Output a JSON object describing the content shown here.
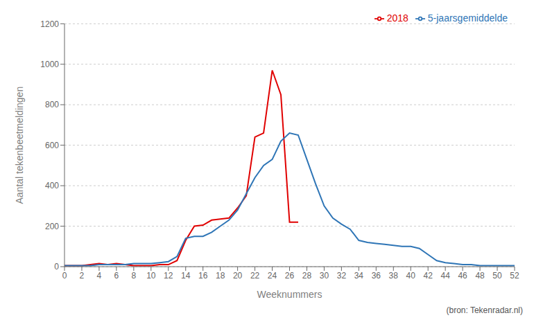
{
  "chart_data": {
    "type": "line",
    "x": [
      0,
      1,
      2,
      3,
      4,
      5,
      6,
      7,
      8,
      9,
      10,
      11,
      12,
      13,
      14,
      15,
      16,
      17,
      18,
      19,
      20,
      21,
      22,
      23,
      24,
      25,
      26,
      27,
      28,
      29,
      30,
      31,
      32,
      33,
      34,
      35,
      36,
      37,
      38,
      39,
      40,
      41,
      42,
      43,
      44,
      45,
      46,
      47,
      48,
      49,
      50,
      51,
      52
    ],
    "series": [
      {
        "name": "2018",
        "color": "#e00000",
        "values": [
          5,
          5,
          5,
          10,
          15,
          10,
          15,
          10,
          5,
          5,
          5,
          10,
          10,
          30,
          130,
          200,
          205,
          230,
          235,
          240,
          290,
          350,
          640,
          660,
          970,
          850,
          220,
          220,
          null,
          null,
          null,
          null,
          null,
          null,
          null,
          null,
          null,
          null,
          null,
          null,
          null,
          null,
          null,
          null,
          null,
          null,
          null,
          null,
          null,
          null,
          null,
          null,
          null
        ]
      },
      {
        "name": "5-jaarsgemiddelde",
        "color": "#2E75B6",
        "values": [
          5,
          5,
          5,
          5,
          10,
          10,
          10,
          10,
          15,
          15,
          15,
          20,
          25,
          50,
          140,
          150,
          150,
          170,
          200,
          230,
          280,
          360,
          440,
          500,
          530,
          620,
          660,
          650,
          530,
          410,
          300,
          240,
          210,
          185,
          130,
          120,
          115,
          110,
          105,
          100,
          100,
          90,
          60,
          30,
          20,
          15,
          10,
          10,
          5,
          5,
          5,
          5,
          5
        ]
      }
    ],
    "xlabel": "Weeknummers",
    "ylabel": "Aantal tekenbeetmeldingen",
    "annotations": [
      "(bron: Tekenradar.nl)"
    ],
    "xlim": [
      0,
      52
    ],
    "ylim": [
      0,
      1200
    ],
    "xticks": [
      0,
      2,
      4,
      6,
      8,
      10,
      12,
      14,
      16,
      18,
      20,
      22,
      24,
      26,
      28,
      30,
      32,
      34,
      36,
      38,
      40,
      42,
      44,
      46,
      48,
      50,
      52
    ],
    "yticks": [
      0,
      200,
      400,
      600,
      800,
      1000,
      1200
    ],
    "grid": "y",
    "legend": "upper right"
  }
}
